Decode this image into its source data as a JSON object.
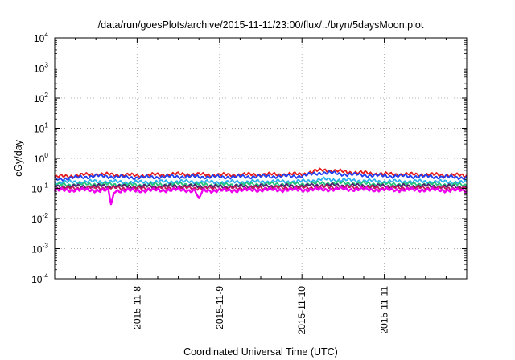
{
  "chart_data": {
    "type": "line",
    "title": "/data/run/goesPlots/archive/2015-11-11/23:00/flux/../bryn/5daysMoon.plot",
    "xlabel": "Coordinated Universal Time (UTC)",
    "ylabel": "cGy/day",
    "yscale": "log",
    "ylim": [
      0.0001,
      10000
    ],
    "y_ticks": [
      {
        "base": "10",
        "exp": "-4",
        "value": 0.0001
      },
      {
        "base": "10",
        "exp": "-3",
        "value": 0.001
      },
      {
        "base": "10",
        "exp": "-2",
        "value": 0.01
      },
      {
        "base": "10",
        "exp": "-1",
        "value": 0.1
      },
      {
        "base": "10",
        "exp": "0",
        "value": 1
      },
      {
        "base": "10",
        "exp": "1",
        "value": 10
      },
      {
        "base": "10",
        "exp": "2",
        "value": 100
      },
      {
        "base": "10",
        "exp": "3",
        "value": 1000
      },
      {
        "base": "10",
        "exp": "4",
        "value": 10000
      }
    ],
    "xlim": [
      "2015-11-07 00:00",
      "2015-11-12 00:00"
    ],
    "x_ticks": [
      "2015-11-8",
      "2015-11-9",
      "2015-11-10",
      "2015-11-11"
    ],
    "grid": true,
    "legend": "none",
    "series": [
      {
        "color": "#e41a1c",
        "x": [
          "2015-11-07 00:00",
          "2015-11-07 12:00",
          "2015-11-08 00:00",
          "2015-11-08 12:00",
          "2015-11-09 00:00",
          "2015-11-09 12:00",
          "2015-11-10 00:00",
          "2015-11-10 06:00",
          "2015-11-10 12:00",
          "2015-11-11 00:00",
          "2015-11-11 12:00",
          "2015-11-12 00:00"
        ],
        "values": [
          0.24,
          0.3,
          0.27,
          0.3,
          0.28,
          0.29,
          0.3,
          0.42,
          0.36,
          0.3,
          0.29,
          0.27
        ]
      },
      {
        "color": "#1f3ff0",
        "x": [
          "2015-11-07 00:00",
          "2015-11-07 12:00",
          "2015-11-08 00:00",
          "2015-11-08 12:00",
          "2015-11-09 00:00",
          "2015-11-09 12:00",
          "2015-11-10 00:00",
          "2015-11-10 06:00",
          "2015-11-10 12:00",
          "2015-11-11 00:00",
          "2015-11-11 12:00",
          "2015-11-12 00:00"
        ],
        "values": [
          0.2,
          0.26,
          0.23,
          0.25,
          0.24,
          0.25,
          0.26,
          0.34,
          0.3,
          0.26,
          0.25,
          0.23
        ]
      },
      {
        "color": "#2ab0f0",
        "x": [
          "2015-11-07 00:00",
          "2015-11-07 12:00",
          "2015-11-08 00:00",
          "2015-11-08 12:00",
          "2015-11-09 00:00",
          "2015-11-09 12:00",
          "2015-11-10 00:00",
          "2015-11-10 06:00",
          "2015-11-10 12:00",
          "2015-11-11 00:00",
          "2015-11-11 12:00",
          "2015-11-12 00:00"
        ],
        "values": [
          0.16,
          0.17,
          0.16,
          0.17,
          0.16,
          0.17,
          0.17,
          0.2,
          0.19,
          0.17,
          0.17,
          0.16
        ]
      },
      {
        "color": "#22c47a",
        "x": [
          "2015-11-07 00:00",
          "2015-11-07 12:00",
          "2015-11-08 00:00",
          "2015-11-08 12:00",
          "2015-11-09 00:00",
          "2015-11-09 12:00",
          "2015-11-10 00:00",
          "2015-11-10 06:00",
          "2015-11-10 12:00",
          "2015-11-11 00:00",
          "2015-11-11 12:00",
          "2015-11-12 00:00"
        ],
        "values": [
          0.13,
          0.14,
          0.13,
          0.14,
          0.13,
          0.14,
          0.14,
          0.15,
          0.15,
          0.14,
          0.14,
          0.13
        ]
      },
      {
        "color": "#4b1f6f",
        "x": [
          "2015-11-07 00:00",
          "2015-11-07 12:00",
          "2015-11-08 00:00",
          "2015-11-08 12:00",
          "2015-11-09 00:00",
          "2015-11-09 12:00",
          "2015-11-10 00:00",
          "2015-11-10 06:00",
          "2015-11-10 12:00",
          "2015-11-11 00:00",
          "2015-11-11 12:00",
          "2015-11-12 00:00"
        ],
        "values": [
          0.115,
          0.12,
          0.115,
          0.12,
          0.115,
          0.12,
          0.12,
          0.13,
          0.125,
          0.12,
          0.12,
          0.115
        ]
      },
      {
        "color": "#c2185b",
        "x": [
          "2015-11-07 00:00",
          "2015-11-07 12:00",
          "2015-11-08 00:00",
          "2015-11-08 12:00",
          "2015-11-09 00:00",
          "2015-11-09 12:00",
          "2015-11-10 00:00",
          "2015-11-10 06:00",
          "2015-11-10 12:00",
          "2015-11-11 00:00",
          "2015-11-11 12:00",
          "2015-11-12 00:00"
        ],
        "values": [
          0.1,
          0.105,
          0.1,
          0.105,
          0.1,
          0.105,
          0.105,
          0.11,
          0.11,
          0.105,
          0.105,
          0.1
        ]
      },
      {
        "color": "#ee00ee",
        "x": [
          "2015-11-07 00:00",
          "2015-11-07 06:00",
          "2015-11-07 15:40",
          "2015-11-07 16:30",
          "2015-11-07 17:20",
          "2015-11-08 00:00",
          "2015-11-08 12:00",
          "2015-11-08 17:00",
          "2015-11-08 18:00",
          "2015-11-08 19:00",
          "2015-11-09 00:00",
          "2015-11-09 12:00",
          "2015-11-10 00:00",
          "2015-11-10 12:00",
          "2015-11-11 00:00",
          "2015-11-11 12:00",
          "2015-11-12 00:00"
        ],
        "values": [
          0.085,
          0.09,
          0.085,
          0.026,
          0.085,
          0.085,
          0.09,
          0.085,
          0.04,
          0.085,
          0.085,
          0.09,
          0.09,
          0.095,
          0.09,
          0.09,
          0.085
        ]
      }
    ]
  }
}
